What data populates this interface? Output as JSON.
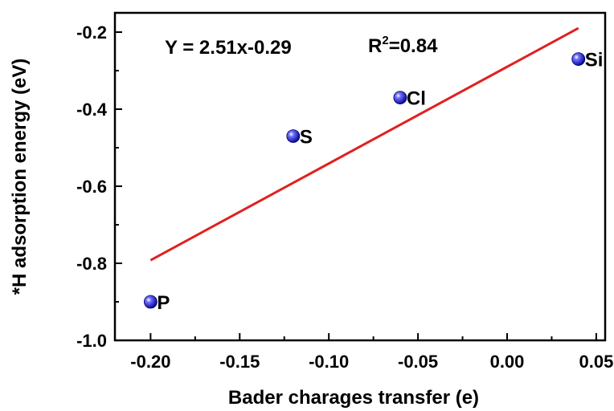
{
  "chart_data": {
    "type": "scatter",
    "title": "",
    "xlabel": "Bader charages transfer (e)",
    "ylabel": "*H adsorption energy (eV)",
    "xlim": [
      -0.22,
      0.055
    ],
    "ylim": [
      -1.0,
      -0.15
    ],
    "xticks": [
      -0.2,
      -0.15,
      -0.1,
      -0.05,
      0.0,
      0.05
    ],
    "xtick_labels": [
      "-0.20",
      "-0.15",
      "-0.10",
      "-0.05",
      "0.00",
      "0.05"
    ],
    "yticks": [
      -1.0,
      -0.8,
      -0.6,
      -0.4,
      -0.2
    ],
    "ytick_labels": [
      "-1.0",
      "-0.8",
      "-0.6",
      "-0.4",
      "-0.2"
    ],
    "grid": false,
    "points": [
      {
        "label": "P",
        "x": -0.2,
        "y": -0.9
      },
      {
        "label": "S",
        "x": -0.12,
        "y": -0.47
      },
      {
        "label": "Cl",
        "x": -0.06,
        "y": -0.37
      },
      {
        "label": "Si",
        "x": 0.04,
        "y": -0.27
      }
    ],
    "fit_line": {
      "slope": 2.51,
      "intercept": -0.29,
      "x_range": [
        -0.2,
        0.04
      ],
      "color": "#e02020"
    },
    "annotations": {
      "equation": "Y = 2.51x-0.29",
      "r2_prefix": "R",
      "r2_sup": "2",
      "r2_value": "=0.84"
    },
    "marker_color": "#1a1aff"
  }
}
